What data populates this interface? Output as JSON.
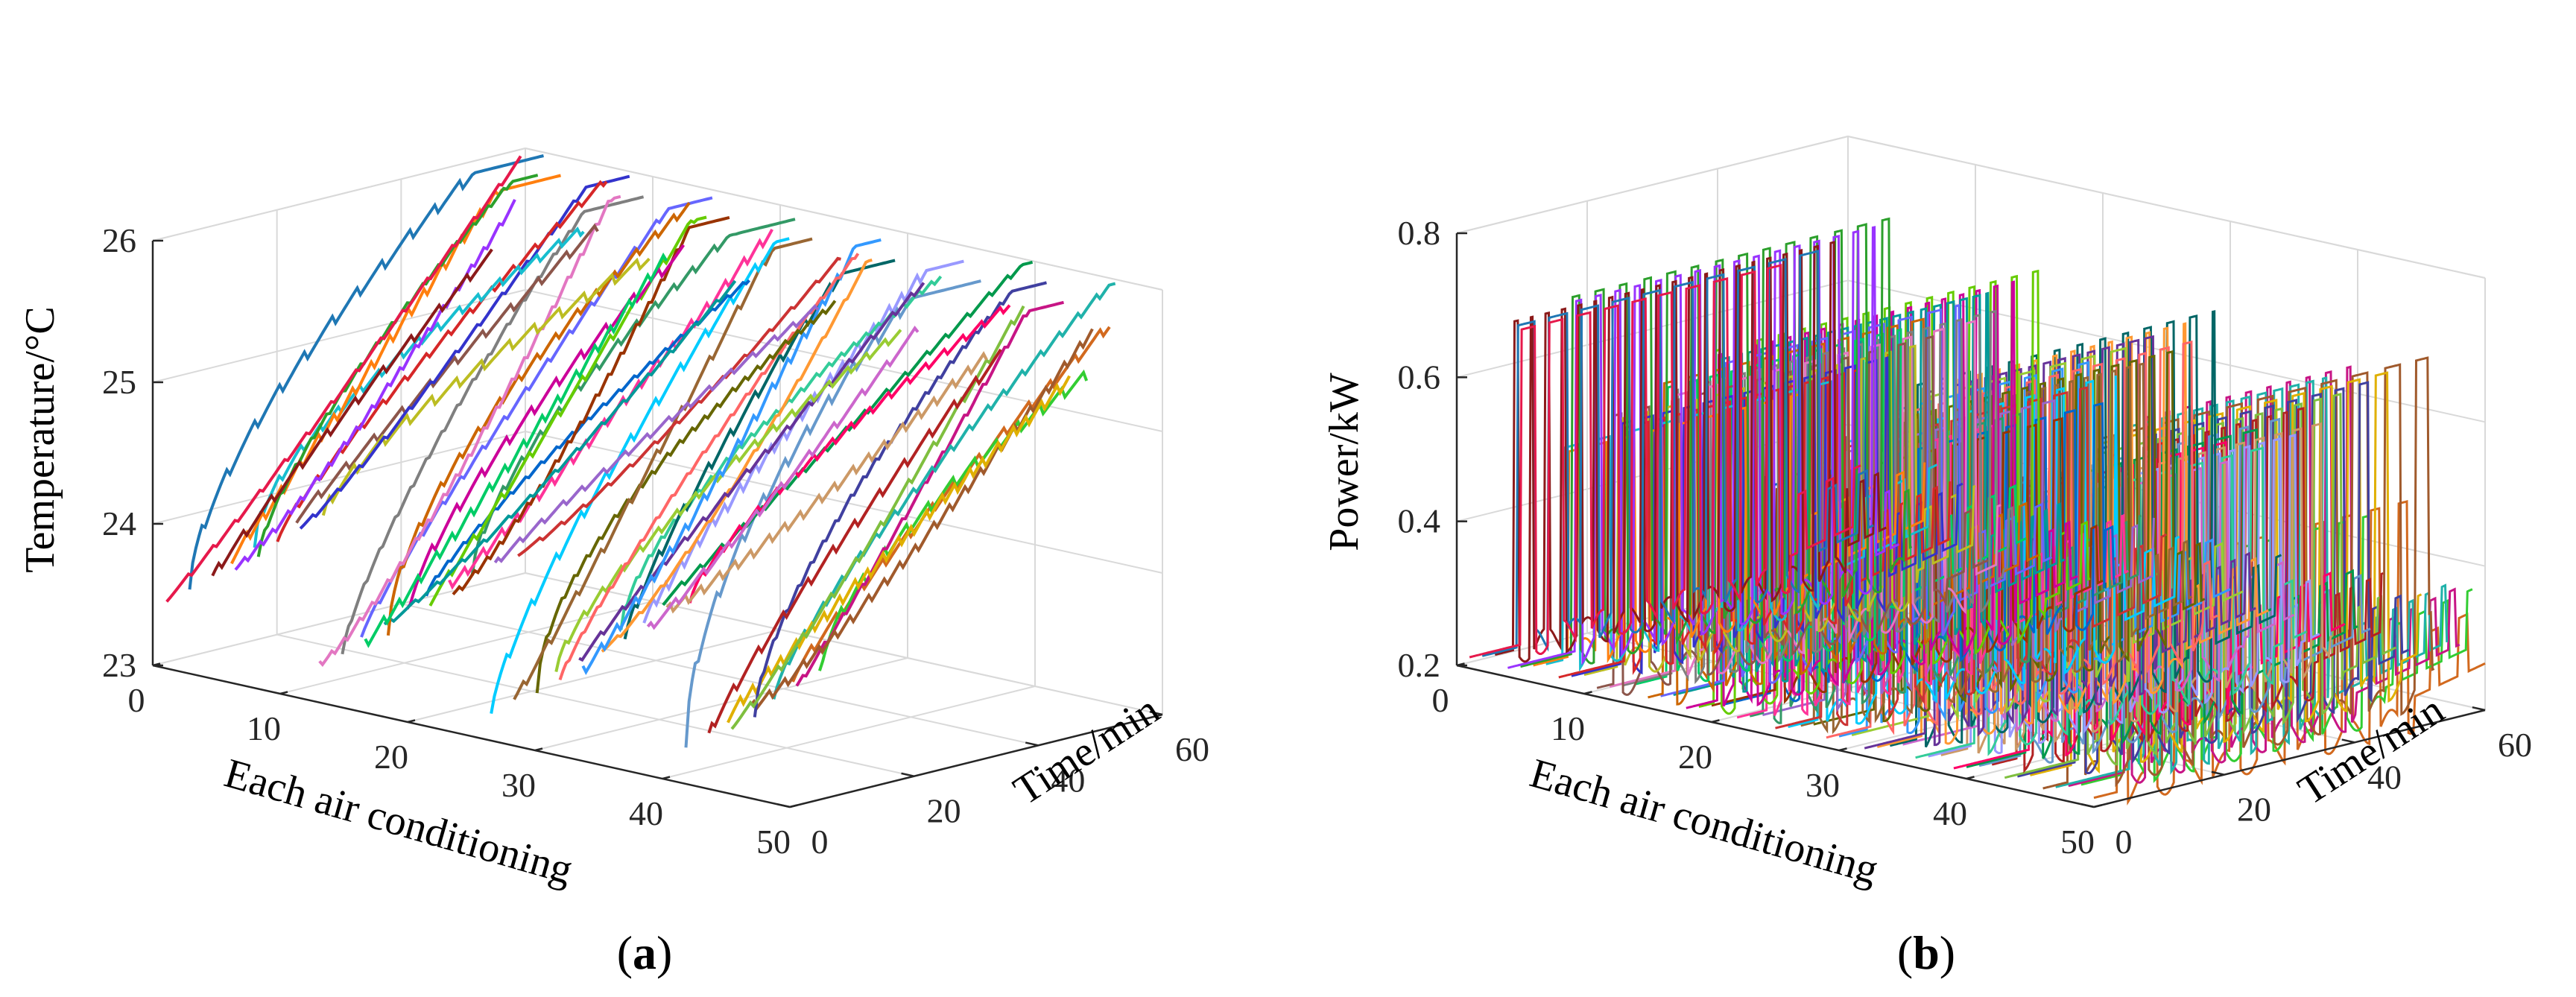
{
  "figure": {
    "panels": [
      "a",
      "b"
    ]
  },
  "chart_data": [
    {
      "id": "a",
      "type": "line",
      "caption": "a",
      "caption_open": "(",
      "caption_close": ")",
      "title": "",
      "xlabel": "Each air conditioning",
      "ylabel": "Time/min",
      "zlabel": "Temperature/°C",
      "xlim": [
        0,
        50
      ],
      "ylim": [
        0,
        60
      ],
      "zlim": [
        23,
        26
      ],
      "xticks": [
        0,
        10,
        20,
        30,
        40,
        50
      ],
      "yticks": [
        0,
        20,
        40,
        60
      ],
      "zticks": [
        23,
        24,
        25,
        26
      ],
      "series_count": 50,
      "series_description": "Indoor temperature of each air conditioner rising over 60 minutes from about 23.2–24.2 °C up to about 25.4–26.6 °C with small sawtooth oscillations",
      "grid": true
    },
    {
      "id": "b",
      "type": "line",
      "caption": "b",
      "caption_open": "(",
      "caption_close": ")",
      "title": "",
      "xlabel": "Each air conditioning",
      "ylabel": "Time/min",
      "zlabel": "Power/kW",
      "xlim": [
        0,
        50
      ],
      "ylim": [
        0,
        60
      ],
      "zlim": [
        0.2,
        0.8
      ],
      "xticks": [
        0,
        10,
        20,
        30,
        40,
        50
      ],
      "yticks": [
        0,
        20,
        40,
        60
      ],
      "zticks": [
        0.2,
        0.4,
        0.6,
        0.8
      ],
      "series_count": 50,
      "series_description": "Power of each air conditioner switching between about 0.2 kW (off) and 0.6–0.75 kW (on) over 60 minutes",
      "grid": true
    }
  ]
}
